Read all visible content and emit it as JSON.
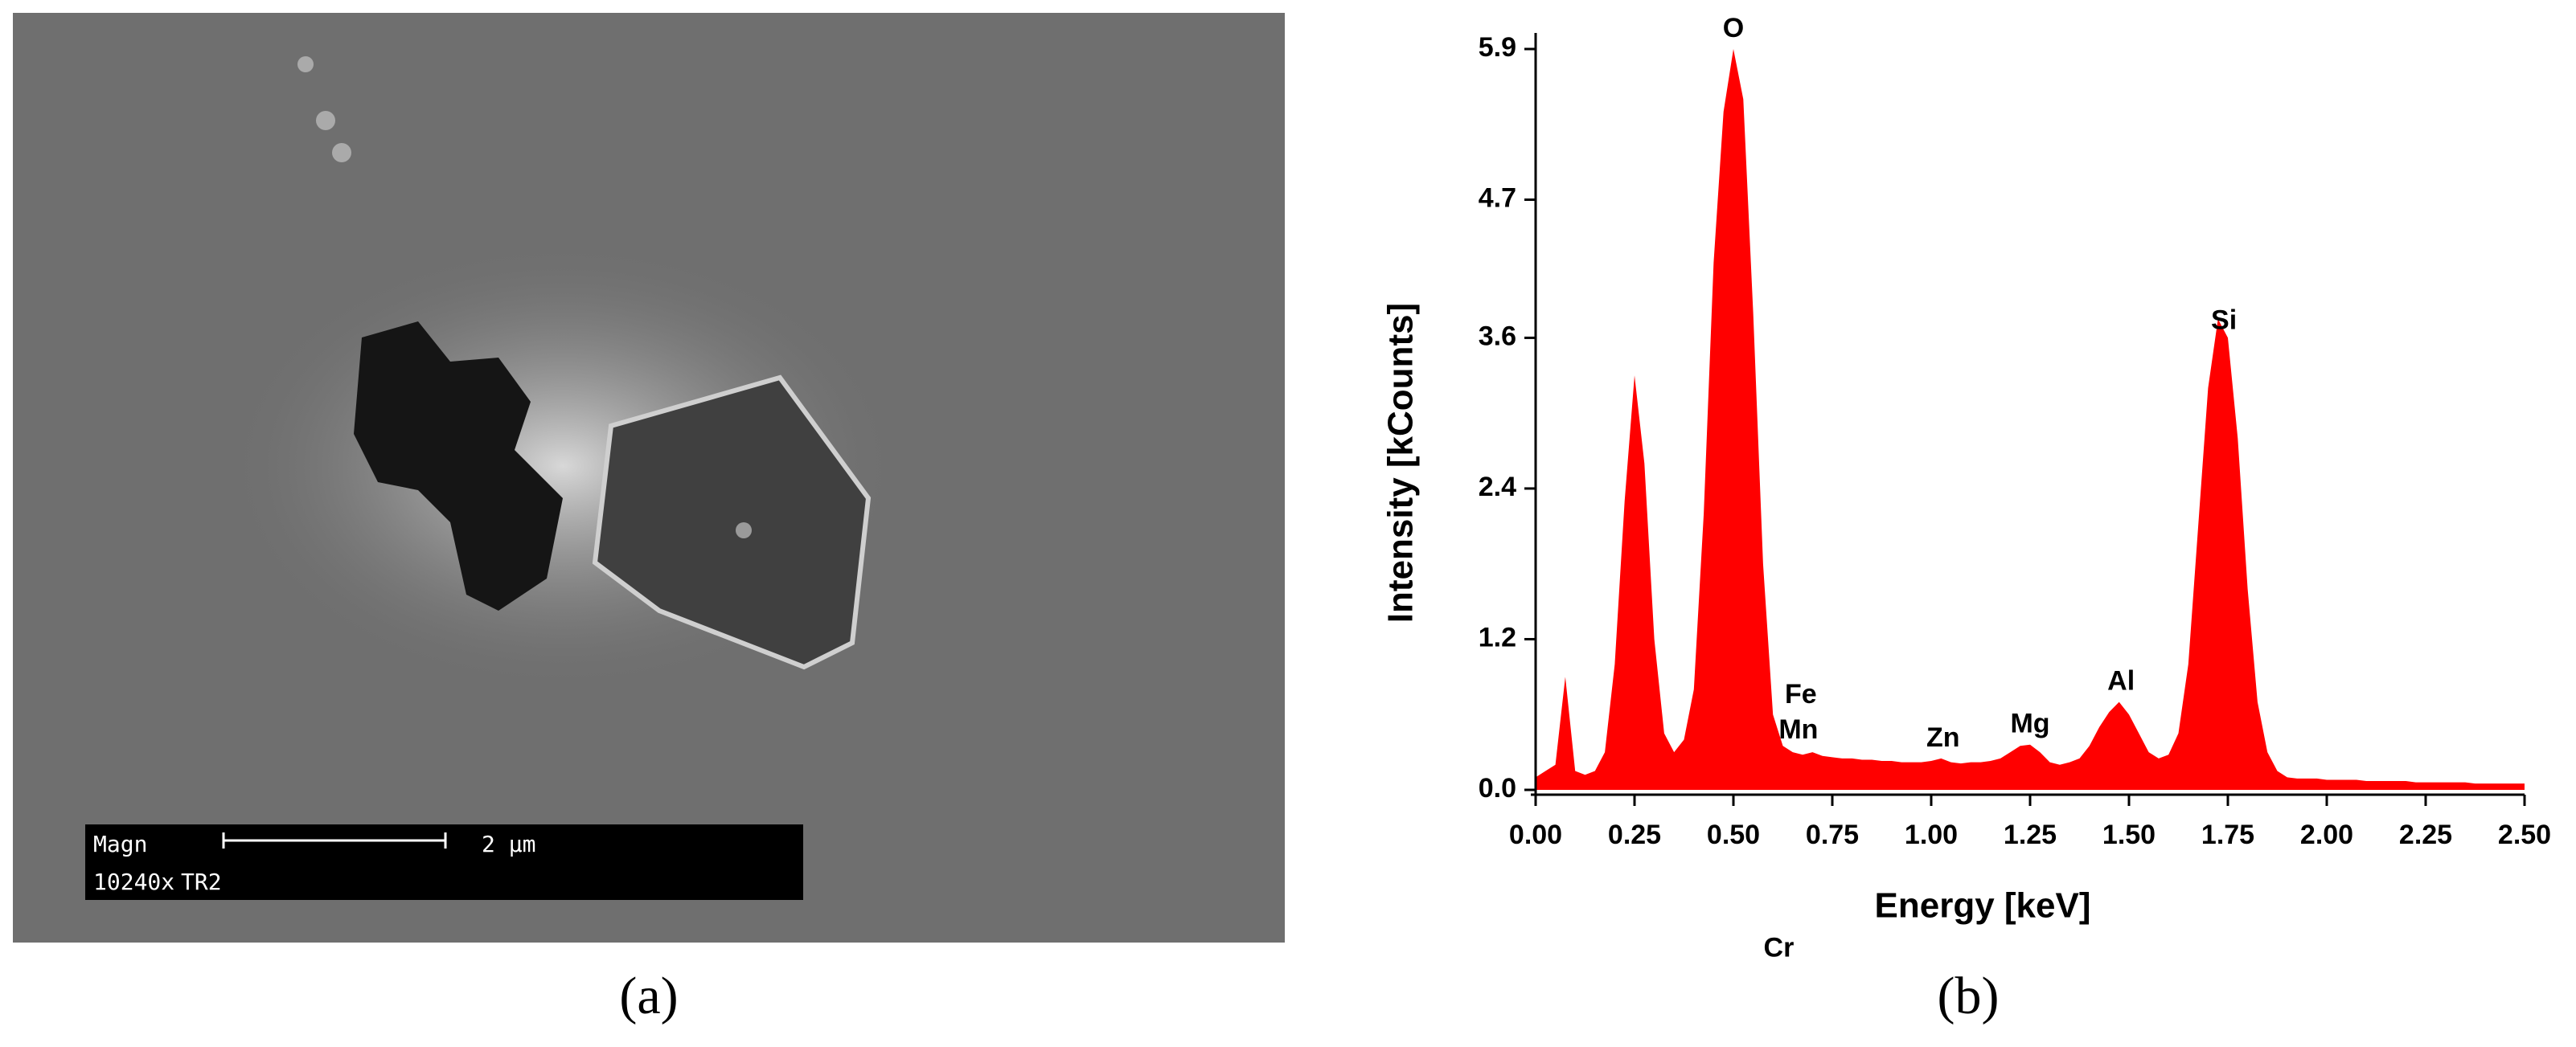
{
  "sem_image": {
    "magn_label": "Magn",
    "magnification": "10240x",
    "detector": "TR2",
    "scale_bar": "2 µm"
  },
  "captions": [
    "(a)",
    "(b)"
  ],
  "chart_data": {
    "type": "area",
    "x_label": "Energy [keV]",
    "y_label": "Intensity [kCounts]",
    "color": "#ff0000",
    "xlim": [
      0,
      2.5
    ],
    "ylim": [
      0,
      5.9
    ],
    "xticks": [
      {
        "value": 0,
        "label": "0.00"
      },
      0.25,
      {
        "value": 0.5,
        "label": "0.50"
      },
      0.75,
      {
        "value": 1,
        "label": "1.00"
      },
      1.25,
      {
        "value": 1.5,
        "label": "1.50"
      },
      1.75,
      {
        "value": 2,
        "label": "2.00"
      },
      2.25,
      {
        "value": 2.5,
        "label": "2.50"
      }
    ],
    "yticks": [
      {
        "value": 0,
        "label": "0.0"
      },
      1.2,
      2.4,
      3.6,
      4.7,
      5.9
    ],
    "x": [
      0,
      0.025,
      0.05,
      0.075,
      0.1,
      0.125,
      0.15,
      0.175,
      0.2,
      0.225,
      0.25,
      0.275,
      0.3,
      0.325,
      0.35,
      0.375,
      0.4,
      0.425,
      0.45,
      0.475,
      0.5,
      0.525,
      0.55,
      0.575,
      0.6,
      0.625,
      0.65,
      0.675,
      0.7,
      0.725,
      0.75,
      0.775,
      0.8,
      0.825,
      0.85,
      0.875,
      0.9,
      0.925,
      0.95,
      0.975,
      1,
      1.025,
      1.05,
      1.075,
      1.1,
      1.125,
      1.15,
      1.175,
      1.2,
      1.225,
      1.25,
      1.275,
      1.3,
      1.325,
      1.35,
      1.375,
      1.4,
      1.425,
      1.45,
      1.475,
      1.5,
      1.525,
      1.55,
      1.575,
      1.6,
      1.625,
      1.65,
      1.675,
      1.7,
      1.725,
      1.75,
      1.775,
      1.8,
      1.825,
      1.85,
      1.875,
      1.9,
      1.925,
      1.95,
      1.975,
      2,
      2.025,
      2.05,
      2.075,
      2.1,
      2.125,
      2.15,
      2.175,
      2.2,
      2.225,
      2.25,
      2.275,
      2.3,
      2.325,
      2.35,
      2.375,
      2.4,
      2.425,
      2.45,
      2.475,
      2.5
    ],
    "values": [
      0.1,
      0.15,
      0.2,
      0.9,
      0.15,
      0.12,
      0.15,
      0.3,
      1.0,
      2.3,
      3.3,
      2.6,
      1.2,
      0.45,
      0.3,
      0.4,
      0.8,
      2.2,
      4.2,
      5.4,
      5.9,
      5.5,
      3.8,
      1.8,
      0.6,
      0.35,
      0.3,
      0.28,
      0.3,
      0.27,
      0.26,
      0.25,
      0.25,
      0.24,
      0.24,
      0.23,
      0.23,
      0.22,
      0.22,
      0.22,
      0.23,
      0.25,
      0.22,
      0.21,
      0.22,
      0.22,
      0.23,
      0.25,
      0.3,
      0.35,
      0.36,
      0.3,
      0.22,
      0.2,
      0.22,
      0.25,
      0.35,
      0.5,
      0.62,
      0.7,
      0.6,
      0.45,
      0.3,
      0.25,
      0.28,
      0.45,
      1.0,
      2.1,
      3.2,
      3.75,
      3.6,
      2.8,
      1.6,
      0.7,
      0.3,
      0.15,
      0.1,
      0.09,
      0.09,
      0.09,
      0.08,
      0.08,
      0.08,
      0.08,
      0.07,
      0.07,
      0.07,
      0.07,
      0.07,
      0.06,
      0.06,
      0.06,
      0.06,
      0.06,
      0.06,
      0.05,
      0.05,
      0.05,
      0.05,
      0.05,
      0.05
    ],
    "annotations": [
      {
        "text": "O",
        "x": 0.5
      },
      {
        "text": "Cr",
        "x": 0.57
      },
      {
        "text": "Fe",
        "x": 0.65
      },
      {
        "text": "Mn",
        "x": 0.64
      },
      {
        "text": "Zn",
        "x": 1.03
      },
      {
        "text": "Mg",
        "x": 1.25
      },
      {
        "text": "Al",
        "x": 1.48
      },
      {
        "text": "Si",
        "x": 1.74
      }
    ]
  }
}
